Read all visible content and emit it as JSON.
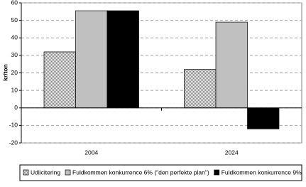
{
  "chart_data": {
    "type": "bar",
    "y_label": "kr/ton",
    "categories": [
      "2004",
      "2024"
    ],
    "series": [
      {
        "name": "Udlicitering",
        "color": "#808080",
        "pattern": "checker",
        "values": [
          32,
          22
        ]
      },
      {
        "name": "Fuldkommen konkurrence 6% (\"den perfekte plan\")",
        "color": "#c0c0c0",
        "values": [
          55.5,
          49
        ]
      },
      {
        "name": "Fuldkommen konkurrence 9%",
        "color": "#000000",
        "values": [
          55.5,
          -12
        ]
      }
    ],
    "ylim": [
      -20,
      60
    ],
    "yticks": [
      -20,
      -10,
      0,
      10,
      20,
      30,
      40,
      50,
      60
    ],
    "grid": true,
    "legend": "bottom"
  }
}
